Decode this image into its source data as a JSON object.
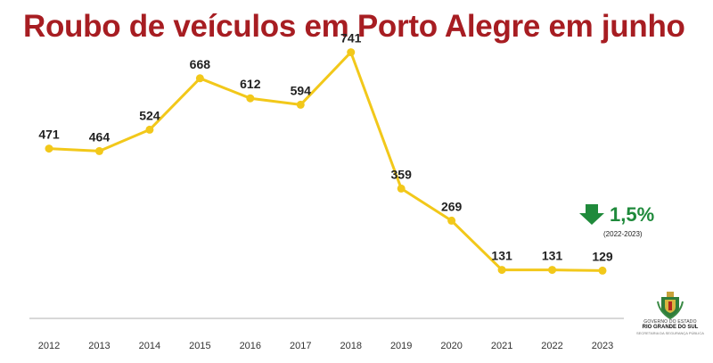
{
  "title": "Roubo de veículos em Porto Alegre em junho",
  "callout": {
    "percent": "1,5%",
    "period": "(2022-2023)",
    "icon": "down-arrow-icon",
    "color": "#1f8a3b"
  },
  "logo": {
    "line1": "GOVERNO DO ESTADO",
    "line2": "RIO GRANDE DO SUL",
    "line3": "SECRETARIA DA SEGURANÇA PÚBLICA"
  },
  "colors": {
    "title": "#a71d22",
    "line": "#f2c81a",
    "axis": "#cccccc"
  },
  "chart_data": {
    "type": "line",
    "title": "Roubo de veículos em Porto Alegre em junho",
    "xlabel": "",
    "ylabel": "",
    "grid": false,
    "ylim": [
      0,
      800
    ],
    "categories": [
      "2012",
      "2013",
      "2014",
      "2015",
      "2016",
      "2017",
      "2018",
      "2019",
      "2020",
      "2021",
      "2022",
      "2023"
    ],
    "series": [
      {
        "values": [
          471,
          464,
          524,
          668,
          612,
          594,
          741,
          359,
          269,
          131,
          131,
          129
        ]
      }
    ]
  }
}
